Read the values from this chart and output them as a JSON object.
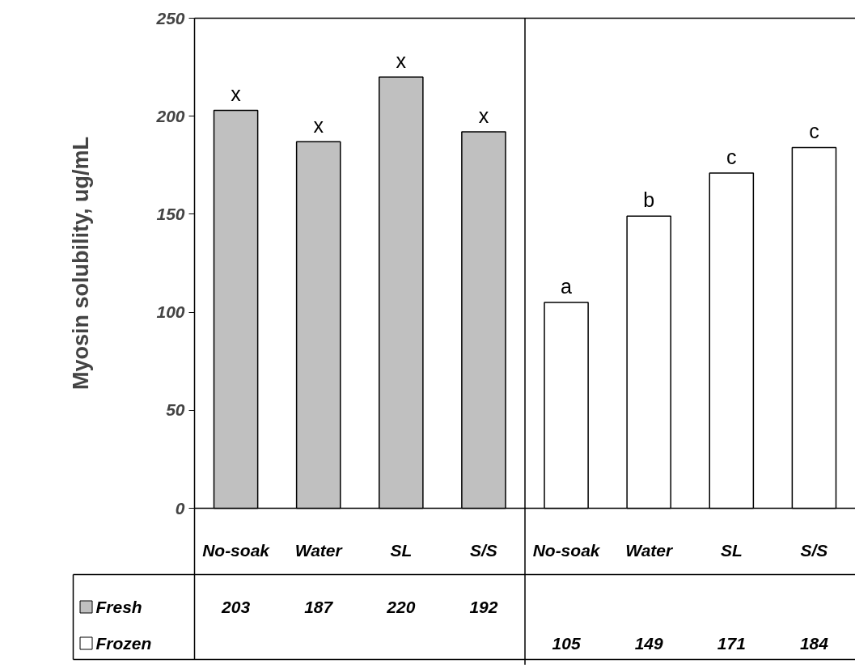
{
  "chart_data": {
    "type": "bar",
    "ylabel": "Myosin solubility, ug/mL",
    "categories": [
      "No-soak",
      "Water",
      "SL",
      "S/S",
      "No-soak",
      "Water",
      "SL",
      "S/S"
    ],
    "series": [
      {
        "name": "Fresh",
        "color": "#c0c0c0",
        "values": [
          203,
          187,
          220,
          192,
          null,
          null,
          null,
          null
        ]
      },
      {
        "name": "Frozen",
        "color": "#ffffff",
        "values": [
          null,
          null,
          null,
          null,
          105,
          149,
          171,
          184
        ]
      }
    ],
    "ylim": [
      0,
      250
    ],
    "yticks": [
      0,
      50,
      100,
      150,
      200,
      250
    ],
    "legend": "bottom left",
    "data_labels": true,
    "annotations": [
      "x",
      "x",
      "x",
      "x",
      "a",
      "b",
      "c",
      "c"
    ]
  }
}
